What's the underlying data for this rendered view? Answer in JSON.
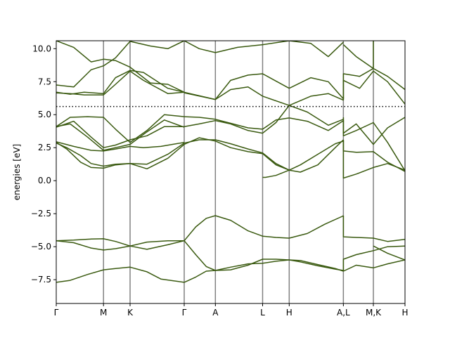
{
  "chart_data": {
    "type": "line",
    "ylabel": "energies [eV]",
    "xlabel": "",
    "title": "",
    "ylim": [
      -9.3,
      10.6
    ],
    "yticks": [
      -7.5,
      -5.0,
      -2.5,
      0.0,
      2.5,
      5.0,
      7.5,
      10.0
    ],
    "ytick_labels": [
      "−7.5",
      "−5.0",
      "−2.5",
      "0.0",
      "2.5",
      "5.0",
      "7.5",
      "10.0"
    ],
    "xlim": [
      0,
      1
    ],
    "kpoints": [
      {
        "label": "Γ",
        "x": 0.0
      },
      {
        "label": "M",
        "x": 0.1355
      },
      {
        "label": "K",
        "x": 0.2117
      },
      {
        "label": "Γ",
        "x": 0.3669
      },
      {
        "label": "A",
        "x": 0.4563
      },
      {
        "label": "L",
        "x": 0.5917
      },
      {
        "label": "H",
        "x": 0.668
      },
      {
        "label": "A,L",
        "x": 0.8233
      },
      {
        "label": "M,K",
        "x": 0.9093
      },
      {
        "label": "H",
        "x": 1.0
      }
    ],
    "fermi_level": 5.62,
    "colors": {
      "bands": "#3a5a10",
      "kpoint_lines": "#808080",
      "fermi": "#000000"
    },
    "series": [
      {
        "x": [
          0.0,
          0.04,
          0.09,
          0.1355,
          0.17,
          0.2117,
          0.26,
          0.3,
          0.3669
        ],
        "values": [
          -7.7,
          -7.55,
          -7.1,
          -6.75,
          -6.65,
          -6.55,
          -6.9,
          -7.45,
          -7.7
        ]
      },
      {
        "x": [
          0.3669,
          0.4,
          0.43,
          0.4563,
          0.5,
          0.55,
          0.5917,
          0.63,
          0.668
        ],
        "values": [
          -7.7,
          -7.3,
          -6.85,
          -6.8,
          -6.55,
          -6.3,
          -6.25,
          -6.1,
          -6.0
        ]
      },
      {
        "x": [
          0.3669,
          0.4,
          0.43,
          0.4563,
          0.5,
          0.55,
          0.5917,
          0.63,
          0.668
        ],
        "values": [
          -4.55,
          -5.6,
          -6.5,
          -6.8,
          -6.75,
          -6.4,
          -5.95,
          -5.95,
          -6.0
        ]
      },
      {
        "x": [
          0.668,
          0.7,
          0.75,
          0.8,
          0.8233
        ],
        "values": [
          -6.0,
          -6.15,
          -6.45,
          -6.7,
          -6.8
        ]
      },
      {
        "x": [
          0.668,
          0.7,
          0.75,
          0.8,
          0.8233
        ],
        "values": [
          -6.0,
          -6.05,
          -6.35,
          -6.65,
          -6.85
        ]
      },
      {
        "x": [
          0.0,
          0.05,
          0.1,
          0.1355,
          0.17,
          0.2117,
          0.26,
          0.32,
          0.3669
        ],
        "values": [
          -4.55,
          -4.5,
          -4.42,
          -4.4,
          -4.6,
          -4.95,
          -4.65,
          -4.55,
          -4.55
        ]
      },
      {
        "x": [
          0.0,
          0.05,
          0.1,
          0.1355,
          0.17,
          0.2117,
          0.26,
          0.32,
          0.3669
        ],
        "values": [
          -4.55,
          -4.7,
          -5.1,
          -5.25,
          -5.15,
          -4.95,
          -5.2,
          -4.85,
          -4.55
        ]
      },
      {
        "x": [
          0.3669,
          0.4,
          0.43,
          0.4563,
          0.5,
          0.55,
          0.5917,
          0.63,
          0.668
        ],
        "values": [
          -4.55,
          -3.5,
          -2.85,
          -2.65,
          -3.0,
          -3.8,
          -4.2,
          -4.3,
          -4.35
        ]
      },
      {
        "x": [
          0.668,
          0.72,
          0.77,
          0.82,
          0.8233
        ],
        "values": [
          -4.35,
          -4.0,
          -3.3,
          -2.7,
          -2.65
        ]
      },
      {
        "x": [
          0.8233,
          0.8233,
          0.86,
          0.9093,
          0.95,
          1.0
        ],
        "values": [
          -2.65,
          -4.25,
          -4.3,
          -4.35,
          -4.6,
          -4.45
        ]
      },
      {
        "x": [
          0.8233,
          0.8233,
          0.86,
          0.9093,
          0.95,
          1.0
        ],
        "values": [
          -6.85,
          -5.95,
          -5.6,
          -5.3,
          -5.0,
          -4.95
        ]
      },
      {
        "x": [
          0.8233,
          0.86,
          0.9093,
          0.95,
          1.0
        ],
        "values": [
          -6.85,
          -6.4,
          -6.6,
          -6.3,
          -6.0
        ]
      },
      {
        "x": [
          0.9093,
          0.95,
          1.0
        ],
        "values": [
          -4.95,
          -5.5,
          -6.0
        ]
      },
      {
        "x": [
          0.0,
          0.03,
          0.07,
          0.1,
          0.1355,
          0.17,
          0.2117,
          0.26,
          0.32,
          0.3669
        ],
        "values": [
          2.85,
          2.5,
          1.9,
          1.3,
          1.1,
          1.25,
          1.3,
          1.25,
          2.0,
          2.85
        ]
      },
      {
        "x": [
          0.0,
          0.03,
          0.07,
          0.1,
          0.1355,
          0.17,
          0.2117,
          0.26,
          0.32,
          0.3669
        ],
        "values": [
          2.9,
          2.4,
          1.4,
          1.0,
          0.95,
          1.2,
          1.3,
          0.9,
          1.7,
          2.75
        ]
      },
      {
        "x": [
          0.0,
          0.05,
          0.1,
          0.1355,
          0.17,
          0.2117,
          0.25,
          0.3,
          0.3669
        ],
        "values": [
          2.95,
          2.6,
          2.3,
          2.25,
          2.4,
          2.6,
          2.5,
          2.6,
          2.9
        ]
      },
      {
        "x": [
          0.3669,
          0.41,
          0.4563,
          0.5,
          0.55,
          0.5917,
          0.63,
          0.668
        ],
        "values": [
          2.85,
          3.1,
          3.1,
          2.8,
          2.4,
          2.1,
          1.3,
          0.8
        ]
      },
      {
        "x": [
          0.3669,
          0.41,
          0.4563,
          0.5,
          0.55,
          0.5917,
          0.63,
          0.668
        ],
        "values": [
          2.75,
          3.25,
          3.0,
          2.5,
          2.2,
          2.05,
          1.2,
          0.8
        ]
      },
      {
        "x": [
          0.5917,
          0.6,
          0.63,
          0.668
        ],
        "values": [
          0.25,
          0.25,
          0.4,
          0.8
        ]
      },
      {
        "x": [
          0.668,
          0.7,
          0.75,
          0.8,
          0.8233
        ],
        "values": [
          0.8,
          1.2,
          2.0,
          2.8,
          3.0
        ]
      },
      {
        "x": [
          0.668,
          0.7,
          0.75,
          0.8,
          0.8233
        ],
        "values": [
          0.8,
          0.65,
          1.2,
          2.5,
          3.1
        ]
      },
      {
        "x": [
          0.8233,
          0.8233,
          0.86,
          0.9093,
          0.95,
          1.0
        ],
        "values": [
          3.1,
          0.2,
          0.5,
          1.0,
          1.3,
          0.8
        ]
      },
      {
        "x": [
          0.8233,
          0.8233,
          0.86,
          0.9093,
          0.95,
          1.0
        ],
        "values": [
          3.0,
          2.25,
          2.15,
          2.2,
          1.4,
          0.7
        ]
      },
      {
        "x": [
          0.0,
          0.04,
          0.09,
          0.1355,
          0.17,
          0.2117,
          0.26,
          0.31,
          0.3669
        ],
        "values": [
          4.1,
          4.3,
          3.3,
          2.3,
          2.5,
          2.75,
          3.7,
          4.6,
          4.05
        ]
      },
      {
        "x": [
          0.0,
          0.04,
          0.09,
          0.1355,
          0.17,
          0.2117,
          0.26,
          0.31,
          0.3669
        ],
        "values": [
          4.1,
          4.8,
          4.85,
          4.8,
          3.9,
          2.9,
          3.8,
          5.0,
          4.85
        ]
      },
      {
        "x": [
          0.0,
          0.05,
          0.1,
          0.1355,
          0.17,
          0.2117,
          0.26,
          0.31,
          0.3669
        ],
        "values": [
          4.05,
          4.5,
          3.3,
          2.5,
          2.7,
          3.1,
          3.4,
          4.1,
          4.1
        ]
      },
      {
        "x": [
          0.3669,
          0.41,
          0.4563,
          0.5,
          0.55,
          0.5917,
          0.63,
          0.668
        ],
        "values": [
          4.85,
          4.8,
          4.65,
          4.35,
          4.0,
          3.9,
          4.6,
          4.75
        ]
      },
      {
        "x": [
          0.3669,
          0.41,
          0.4563,
          0.5,
          0.55,
          0.5917,
          0.63,
          0.668
        ],
        "values": [
          4.1,
          4.3,
          4.55,
          4.3,
          3.8,
          3.6,
          4.4,
          5.7
        ]
      },
      {
        "x": [
          0.668,
          0.72,
          0.78,
          0.8233
        ],
        "values": [
          4.75,
          4.5,
          3.8,
          4.55
        ]
      },
      {
        "x": [
          0.668,
          0.72,
          0.78,
          0.8233
        ],
        "values": [
          5.7,
          5.2,
          4.2,
          4.65
        ]
      },
      {
        "x": [
          0.8233,
          0.8233,
          0.86,
          0.9093,
          0.95,
          1.0
        ],
        "values": [
          4.6,
          3.4,
          3.8,
          4.4,
          2.9,
          0.75
        ]
      },
      {
        "x": [
          0.8233,
          0.8233,
          0.86,
          0.9093,
          0.95,
          1.0
        ],
        "values": [
          4.8,
          3.6,
          4.3,
          2.75,
          4.0,
          4.8
        ]
      },
      {
        "x": [
          0.0,
          0.04,
          0.08,
          0.1355,
          0.17,
          0.2117,
          0.25,
          0.32,
          0.3669
        ],
        "values": [
          6.65,
          6.6,
          6.5,
          6.5,
          7.3,
          8.3,
          7.6,
          6.6,
          6.7
        ]
      },
      {
        "x": [
          0.0,
          0.04,
          0.08,
          0.1355,
          0.17,
          0.2117,
          0.25,
          0.32,
          0.3669
        ],
        "values": [
          6.7,
          6.55,
          6.7,
          6.6,
          7.8,
          8.35,
          8.2,
          7.0,
          6.7
        ]
      },
      {
        "x": [
          0.3669,
          0.4563,
          0.5,
          0.55,
          0.5917,
          0.668
        ],
        "values": [
          6.7,
          6.15,
          6.9,
          7.1,
          6.4,
          5.7
        ]
      },
      {
        "x": [
          0.3669,
          0.4563,
          0.5,
          0.55,
          0.5917,
          0.668
        ],
        "values": [
          6.65,
          6.15,
          7.6,
          8.0,
          8.1,
          7.0
        ]
      },
      {
        "x": [
          0.668,
          0.73,
          0.78,
          0.8233
        ],
        "values": [
          7.0,
          7.8,
          7.5,
          6.2
        ]
      },
      {
        "x": [
          0.668,
          0.73,
          0.78,
          0.8233
        ],
        "values": [
          5.7,
          6.4,
          6.6,
          6.1
        ]
      },
      {
        "x": [
          0.8233,
          0.8233,
          0.87,
          0.9093,
          0.95,
          1.0
        ],
        "values": [
          6.2,
          8.1,
          7.9,
          8.5,
          7.9,
          6.9
        ]
      },
      {
        "x": [
          0.8233,
          0.8233,
          0.87,
          0.9093,
          0.95,
          1.0
        ],
        "values": [
          6.1,
          7.6,
          7.0,
          8.3,
          7.5,
          5.8
        ]
      },
      {
        "x": [
          0.0,
          0.05,
          0.1,
          0.1355,
          0.17,
          0.2117,
          0.27,
          0.32,
          0.3669
        ],
        "values": [
          7.25,
          7.1,
          8.4,
          8.7,
          9.3,
          10.55,
          10.2,
          10.0,
          10.6
        ]
      },
      {
        "x": [
          0.0,
          0.05,
          0.1,
          0.1355,
          0.17,
          0.2117,
          0.27,
          0.32,
          0.3669
        ],
        "values": [
          10.6,
          10.1,
          9.0,
          9.2,
          9.1,
          8.6,
          7.4,
          7.3,
          6.7
        ]
      },
      {
        "x": [
          0.3669,
          0.41,
          0.4563,
          0.52,
          0.5917,
          0.668
        ],
        "values": [
          10.6,
          10.0,
          9.7,
          10.1,
          10.3,
          10.6
        ]
      },
      {
        "x": [
          0.668,
          0.73,
          0.78,
          0.8233
        ],
        "values": [
          10.6,
          10.4,
          9.4,
          10.5
        ]
      },
      {
        "x": [
          0.8233,
          0.86,
          0.9093
        ],
        "values": [
          10.3,
          9.4,
          8.5
        ]
      },
      {
        "x": [
          0.9093,
          0.9093
        ],
        "values": [
          8.5,
          10.6
        ]
      }
    ]
  }
}
